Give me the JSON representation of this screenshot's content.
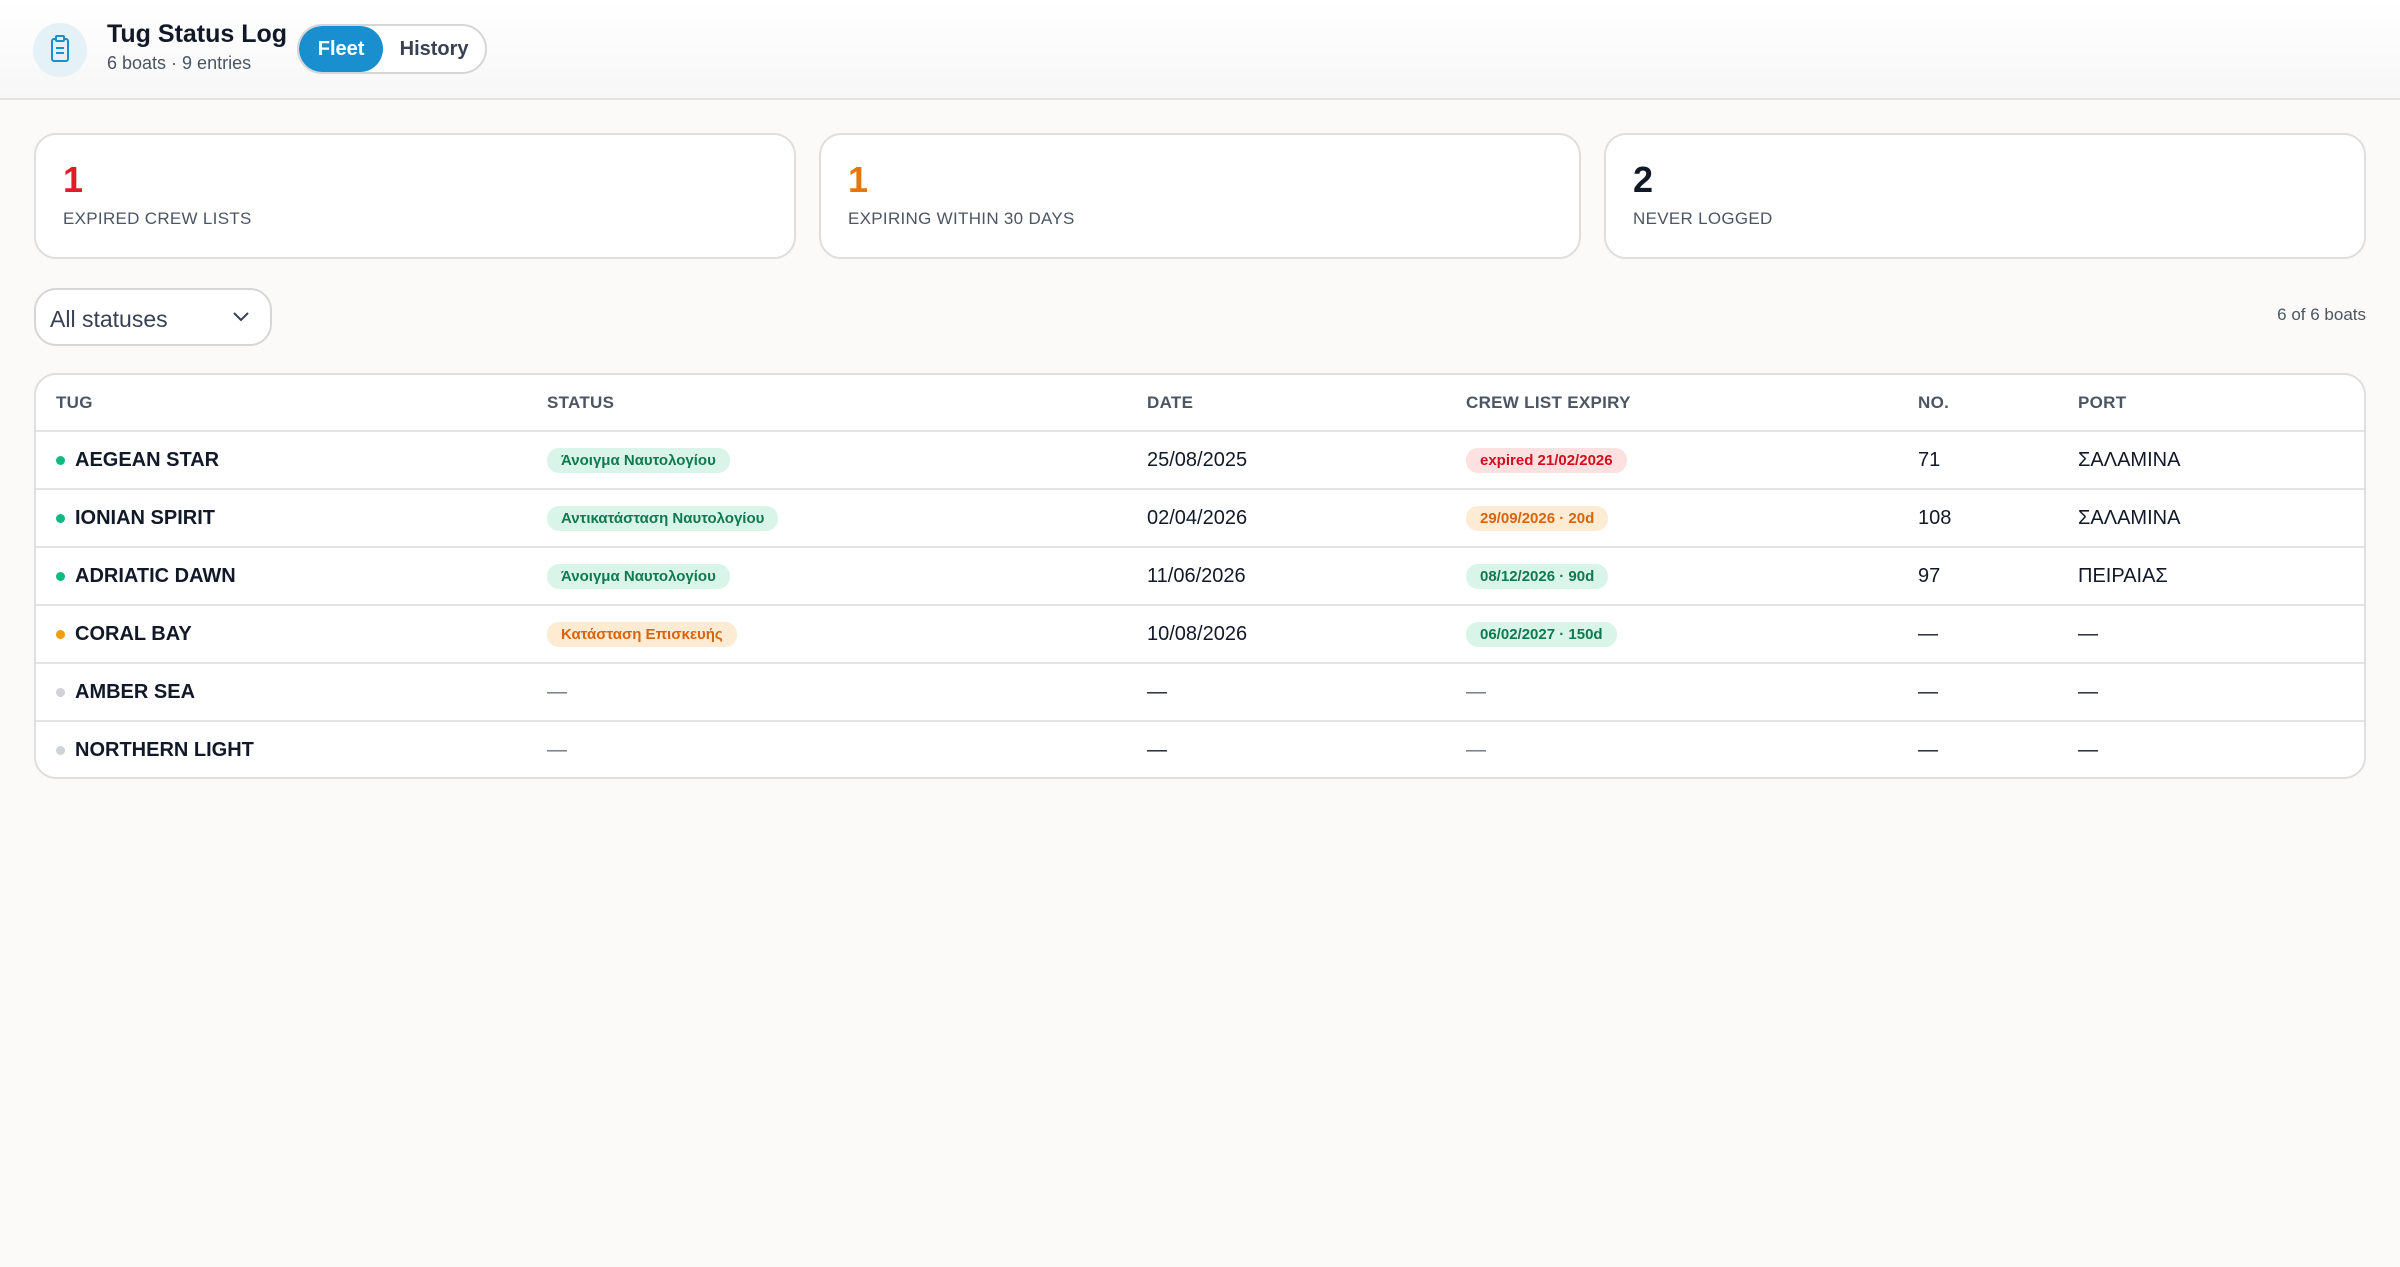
{
  "header": {
    "title": "Tug Status Log",
    "subtitle": "6 boats · 9 entries",
    "tabs": [
      "Fleet",
      "History"
    ],
    "active_tab": 0
  },
  "stats": [
    {
      "value": 1,
      "label": "EXPIRED CREW LISTS",
      "color": "#e11d2a"
    },
    {
      "value": 1,
      "label": "EXPIRING WITHIN 30 DAYS",
      "color": "#e8740c"
    },
    {
      "value": 2,
      "label": "NEVER LOGGED",
      "color": "#111827"
    }
  ],
  "filter": {
    "selected": "All statuses",
    "count": "6 of 6 boats"
  },
  "table": {
    "columns": [
      "TUG",
      "STATUS",
      "DATE",
      "CREW LIST EXPIRY",
      "NO.",
      "PORT"
    ],
    "rows": [
      {
        "tone": "green",
        "expiry_tone": "red",
        "cells": [
          "AEGEAN STAR",
          "Άνοιγμα Ναυτολογίου",
          "25/08/2025",
          "expired 21/02/2026",
          "71",
          "ΣΑΛΑΜΙΝΑ"
        ]
      },
      {
        "tone": "green",
        "expiry_tone": "orange",
        "cells": [
          "IONIAN SPIRIT",
          "Αντικατάσταση Ναυτολογίου",
          "02/04/2026",
          "29/09/2026 · 20d",
          "108",
          "ΣΑΛΑΜΙΝΑ"
        ]
      },
      {
        "tone": "green",
        "expiry_tone": "green",
        "cells": [
          "ADRIATIC DAWN",
          "Άνοιγμα Ναυτολογίου",
          "11/06/2026",
          "08/12/2026 · 90d",
          "97",
          "ΠΕΙΡΑΙΑΣ"
        ]
      },
      {
        "tone": "orange",
        "expiry_tone": "green",
        "cells": [
          "CORAL BAY",
          "Κατάσταση Επισκευής",
          "10/08/2026",
          "06/02/2027 · 150d",
          "—",
          "—"
        ]
      },
      {
        "tone": "gray",
        "expiry_tone": "none",
        "cells": [
          "AMBER SEA",
          "—",
          "—",
          "—",
          "—",
          "—"
        ]
      },
      {
        "tone": "gray",
        "expiry_tone": "none",
        "cells": [
          "NORTHERN LIGHT",
          "—",
          "—",
          "—",
          "—",
          "—"
        ]
      }
    ]
  }
}
